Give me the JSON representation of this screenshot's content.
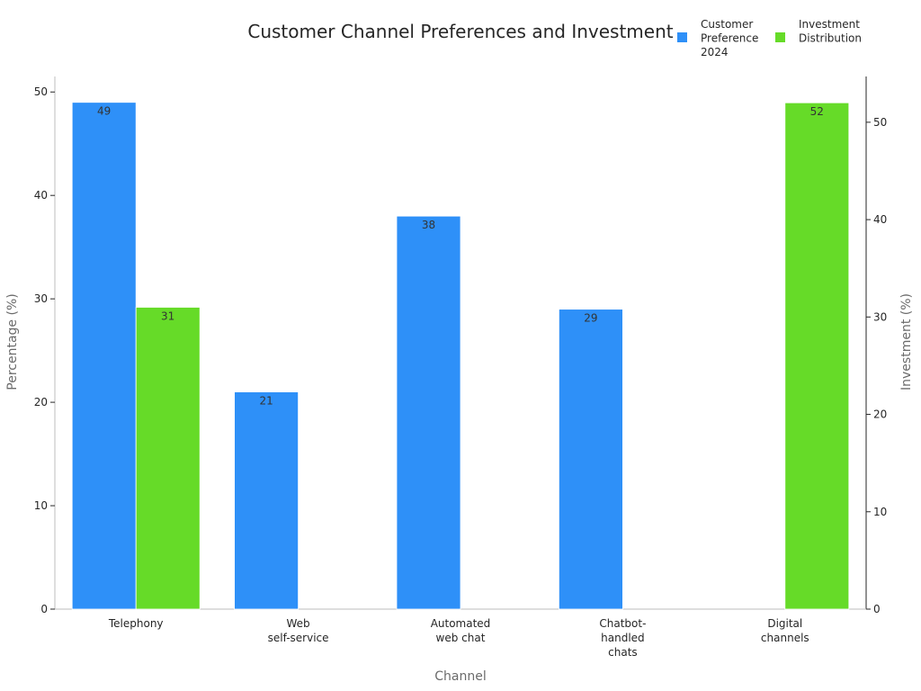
{
  "chart_data": {
    "type": "bar",
    "title": "Customer Channel Preferences and Investment",
    "xlabel": "Channel",
    "ylabel_left": "Percentage (%)",
    "ylabel_right": "Investment (%)",
    "categories": [
      [
        "Telephony"
      ],
      [
        "Web",
        "self-service"
      ],
      [
        "Automated",
        "web chat"
      ],
      [
        "Chatbot-",
        "handled",
        "chats"
      ],
      [
        "Digital",
        "channels"
      ]
    ],
    "ylim_left": [
      0,
      51.5
    ],
    "ylim_right": [
      0,
      54.7
    ],
    "yticks_left": [
      0,
      10,
      20,
      30,
      40,
      50
    ],
    "yticks_right": [
      0,
      10,
      20,
      30,
      40,
      50
    ],
    "series": [
      {
        "name": "Customer Preference 2024",
        "legend_lines": [
          "Customer",
          "Preference",
          "2024"
        ],
        "axis": "left",
        "color": "#2e90f8",
        "values": [
          49,
          21,
          38,
          29,
          null
        ]
      },
      {
        "name": "Investment Distribution",
        "legend_lines": [
          "Investment",
          "Distribution"
        ],
        "axis": "right",
        "color": "#66db28",
        "values": [
          31,
          null,
          null,
          null,
          52
        ]
      }
    ],
    "legend_position": "top-right",
    "grid": false
  }
}
